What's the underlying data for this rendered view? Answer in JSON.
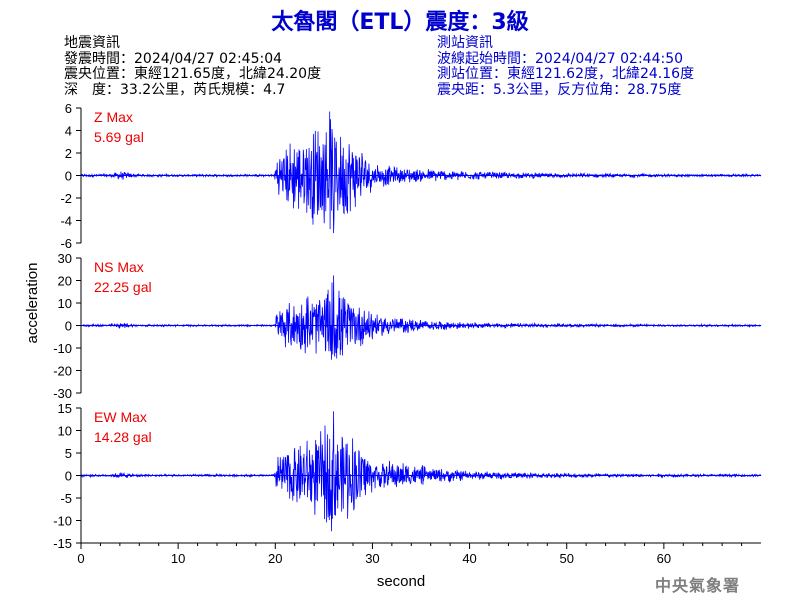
{
  "title": "太魯閣（ETL）震度：3級",
  "earthquake_info": {
    "heading": "地震資訊",
    "origin_time": "發震時間：2024/04/27 02:45:04",
    "epicenter": "震央位置：東經121.65度，北緯24.20度",
    "depth_magnitude": "深　度：33.2公里，芮氏規模：4.7"
  },
  "station_info": {
    "heading": "測站資訊",
    "wave_start_time": "波線起始時間：2024/04/27 02:44:50",
    "station_location": "測站位置：東經121.62度，北緯24.16度",
    "distance_azimuth": "震央距：5.3公里，反方位角：28.75度"
  },
  "watermark": "中央氣象署",
  "colors": {
    "trace": "#0000ff",
    "max_label": "#ee0000",
    "title": "#0000cc"
  },
  "chart_data": {
    "type": "line",
    "xlabel": "second",
    "ylabel": "acceleration",
    "xlim": [
      0,
      70
    ],
    "x_ticks": [
      0,
      10,
      20,
      30,
      40,
      50,
      60
    ],
    "grid": false,
    "panels": [
      {
        "component": "Z",
        "label": "Z Max",
        "max_text": "5.69 gal",
        "max_value": 5.69,
        "ylim": [
          -6,
          6
        ],
        "y_ticks": [
          -6,
          -4,
          -2,
          0,
          2,
          4,
          6
        ],
        "envelope": [
          [
            0,
            0.15
          ],
          [
            3,
            0.2
          ],
          [
            4,
            0.45
          ],
          [
            5,
            0.3
          ],
          [
            6,
            0.15
          ],
          [
            10,
            0.12
          ],
          [
            19.9,
            0.12
          ],
          [
            20.1,
            2.5
          ],
          [
            22,
            3.5
          ],
          [
            23,
            3.8
          ],
          [
            24,
            4.8
          ],
          [
            25,
            5.2
          ],
          [
            25.6,
            5.69
          ],
          [
            26.5,
            4.6
          ],
          [
            27.5,
            4.0
          ],
          [
            29,
            2.6
          ],
          [
            30,
            1.3
          ],
          [
            31,
            1.2
          ],
          [
            32,
            0.9
          ],
          [
            35,
            0.7
          ],
          [
            40,
            0.45
          ],
          [
            45,
            0.3
          ],
          [
            50,
            0.22
          ],
          [
            60,
            0.15
          ],
          [
            70,
            0.12
          ]
        ]
      },
      {
        "component": "NS",
        "label": "NS Max",
        "max_text": "22.25 gal",
        "max_value": 22.25,
        "ylim": [
          -30,
          30
        ],
        "y_ticks": [
          -30,
          -20,
          -10,
          0,
          10,
          20,
          30
        ],
        "envelope": [
          [
            0,
            0.5
          ],
          [
            3,
            0.7
          ],
          [
            4,
            1.5
          ],
          [
            5,
            1.0
          ],
          [
            6,
            0.6
          ],
          [
            10,
            0.5
          ],
          [
            19.9,
            0.5
          ],
          [
            20.1,
            8
          ],
          [
            21.5,
            11
          ],
          [
            22.5,
            13
          ],
          [
            23.5,
            16
          ],
          [
            24.5,
            14
          ],
          [
            25.5,
            19
          ],
          [
            26,
            22.25
          ],
          [
            27,
            17
          ],
          [
            28,
            12
          ],
          [
            29.5,
            9
          ],
          [
            31,
            6
          ],
          [
            33,
            4
          ],
          [
            36,
            2.5
          ],
          [
            40,
            1.6
          ],
          [
            45,
            1.1
          ],
          [
            50,
            0.8
          ],
          [
            60,
            0.6
          ],
          [
            70,
            0.5
          ]
        ]
      },
      {
        "component": "EW",
        "label": "EW Max",
        "max_text": "14.28 gal",
        "max_value": 14.28,
        "ylim": [
          -15,
          15
        ],
        "y_ticks": [
          -15,
          -10,
          -5,
          0,
          5,
          10,
          15
        ],
        "envelope": [
          [
            0,
            0.3
          ],
          [
            3,
            0.35
          ],
          [
            4,
            0.8
          ],
          [
            5,
            0.5
          ],
          [
            6,
            0.35
          ],
          [
            10,
            0.3
          ],
          [
            19.9,
            0.3
          ],
          [
            20.1,
            5
          ],
          [
            21.5,
            7
          ],
          [
            22.5,
            8
          ],
          [
            23.5,
            9
          ],
          [
            24.5,
            10
          ],
          [
            25.5,
            12
          ],
          [
            26,
            14.28
          ],
          [
            27,
            12
          ],
          [
            28.5,
            9
          ],
          [
            30,
            4
          ],
          [
            31,
            4
          ],
          [
            32,
            3.5
          ],
          [
            34,
            3
          ],
          [
            36,
            2
          ],
          [
            40,
            1.2
          ],
          [
            45,
            0.8
          ],
          [
            50,
            0.6
          ],
          [
            60,
            0.4
          ],
          [
            70,
            0.3
          ]
        ]
      }
    ]
  }
}
